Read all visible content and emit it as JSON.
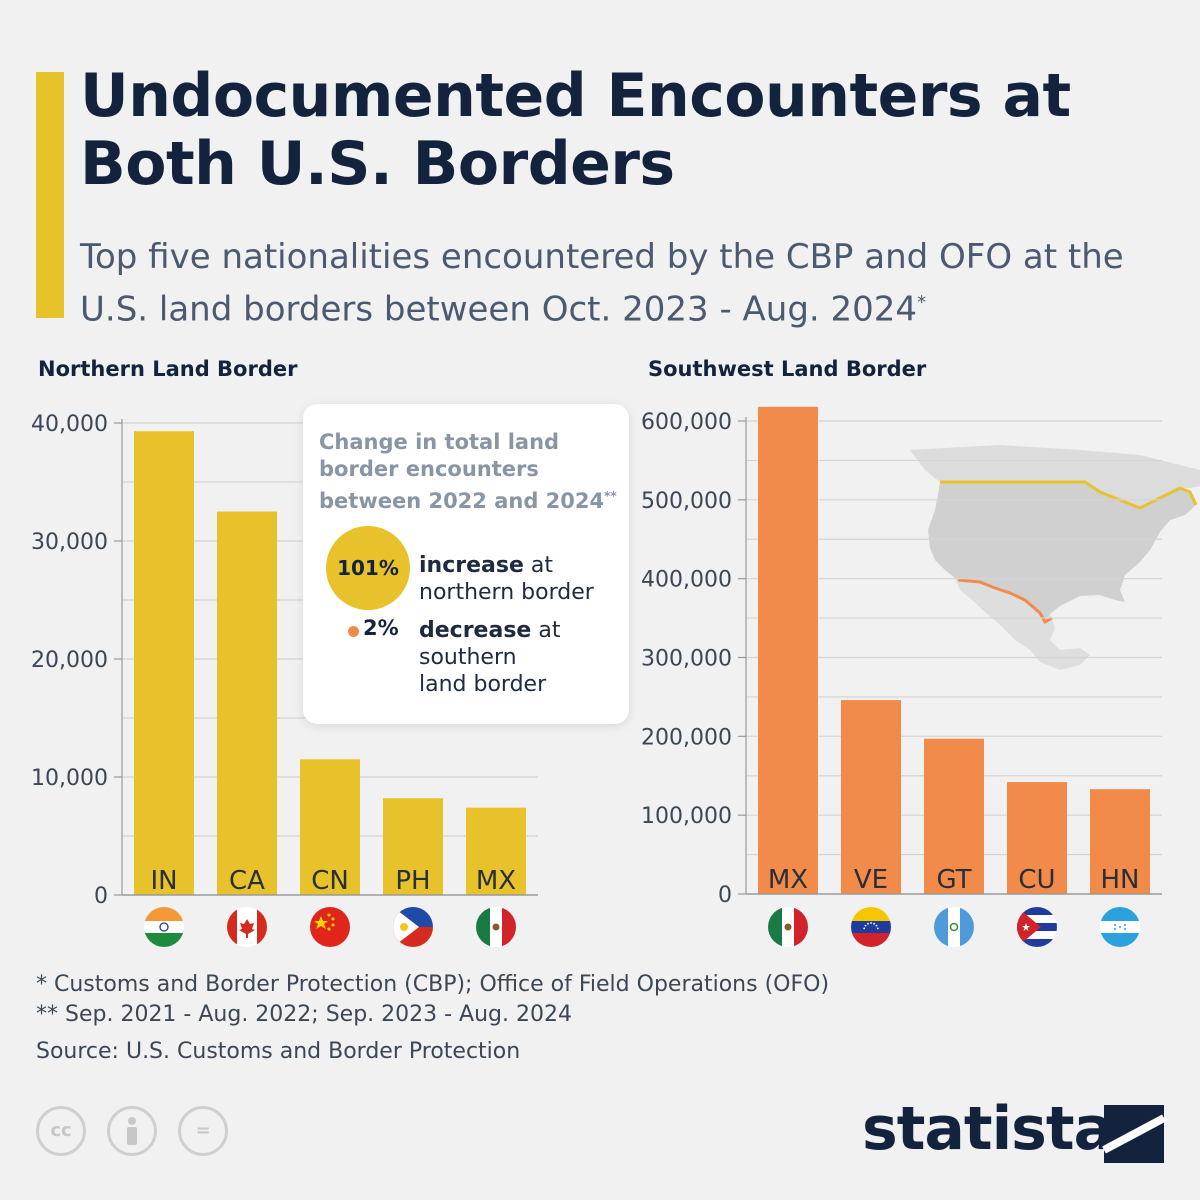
{
  "title": "Undocumented Encounters at Both U.S. Borders",
  "subtitle": "Top five nationalities encountered by the CBP and OFO at the U.S. land borders between Oct. 2023 - Aug. 2024",
  "subtitle_mark": "*",
  "callout": {
    "title": "Change in total land border encounters between 2022 and 2024",
    "title_mark": "**",
    "north_value": "101%",
    "north_bold": "increase",
    "north_rest": "at northern border",
    "south_value": "2%",
    "south_bold": "decrease",
    "south_rest": "at southern land border"
  },
  "chart_data": [
    {
      "type": "bar",
      "title": "Northern Land Border",
      "categories": [
        "IN",
        "CA",
        "CN",
        "PH",
        "MX"
      ],
      "flags": [
        "india-flag-icon",
        "canada-flag-icon",
        "china-flag-icon",
        "philippines-flag-icon",
        "mexico-flag-icon"
      ],
      "values": [
        39300,
        32500,
        11500,
        8200,
        7400
      ],
      "ticks": [
        0,
        10000,
        20000,
        30000,
        40000
      ],
      "tick_labels": [
        "0",
        "10,000",
        "20,000",
        "30,000",
        "40,000"
      ],
      "ylim": [
        0,
        40000
      ],
      "color": "#e7c22b",
      "grid": true
    },
    {
      "type": "bar",
      "title": "Southwest Land Border",
      "categories": [
        "MX",
        "VE",
        "GT",
        "CU",
        "HN"
      ],
      "flags": [
        "mexico-flag-icon",
        "venezuela-flag-icon",
        "guatemala-flag-icon",
        "cuba-flag-icon",
        "honduras-flag-icon"
      ],
      "values": [
        618000,
        246000,
        197000,
        142000,
        133000
      ],
      "ticks": [
        0,
        100000,
        200000,
        300000,
        400000,
        500000,
        600000
      ],
      "tick_labels": [
        "0",
        "100,000",
        "200,000",
        "300,000",
        "400,000",
        "500,000",
        "600,000"
      ],
      "ylim": [
        0,
        600000
      ],
      "color": "#f28a4a",
      "grid": true
    }
  ],
  "footnotes": {
    "one": "*   Customs and Border Protection (CBP); Office of Field Operations (OFO)",
    "two": "** Sep. 2021 - Aug. 2022; Sep. 2023 - Aug. 2024"
  },
  "source": "Source: U.S. Customs and Border Protection",
  "license": {
    "cc": "cc",
    "eq": "="
  },
  "brand": "statista",
  "colors": {
    "yellow": "#e7c22b",
    "orange": "#f28a4a",
    "navy": "#13233d"
  }
}
